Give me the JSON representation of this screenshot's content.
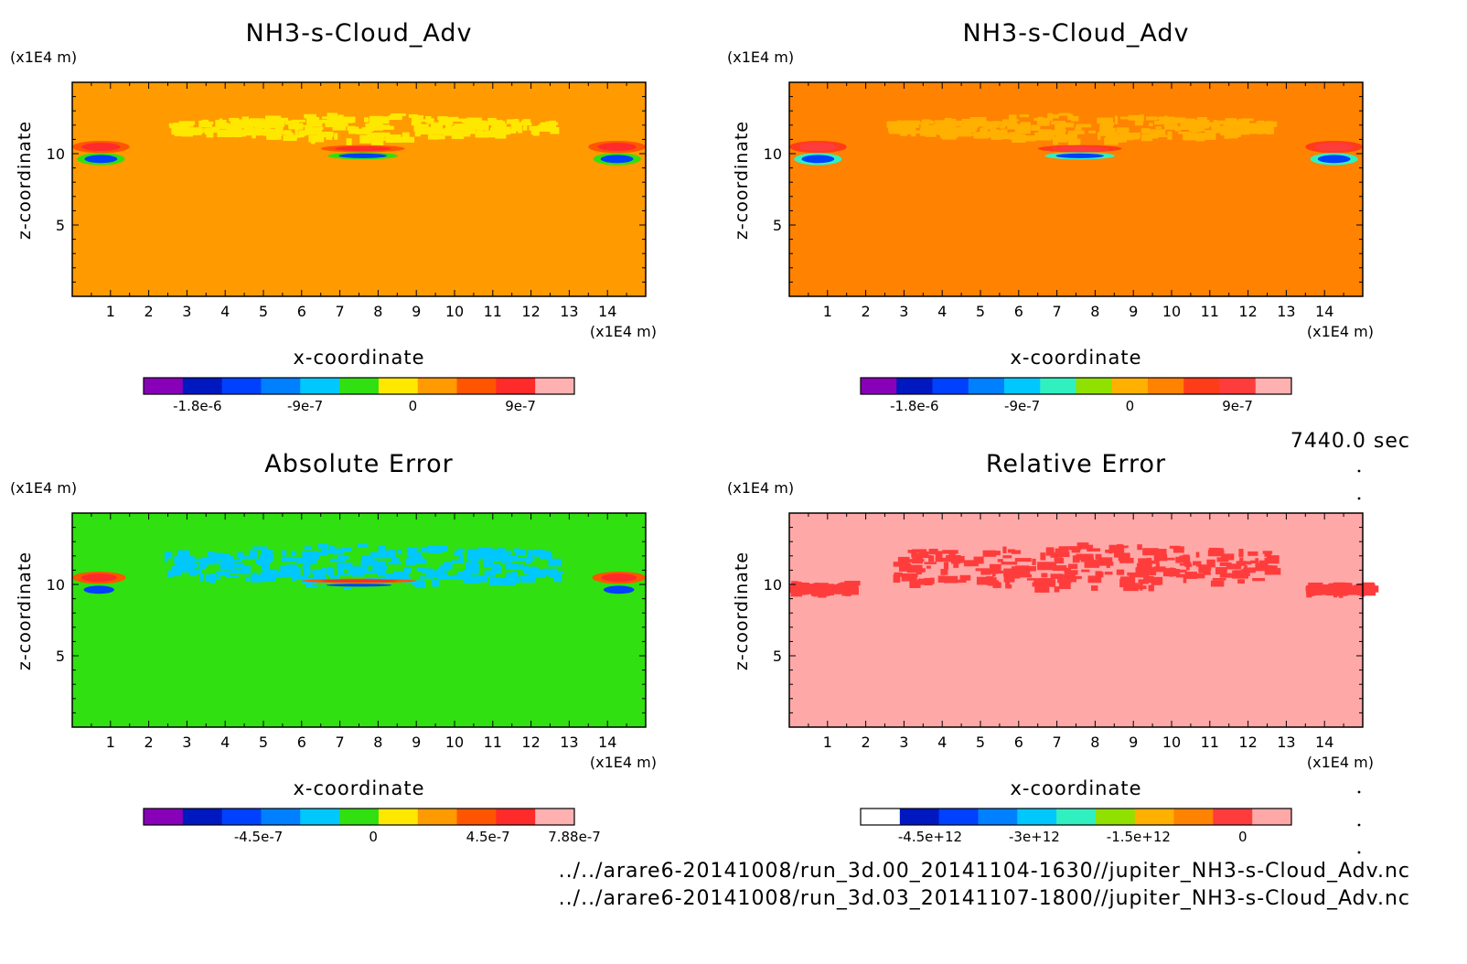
{
  "time_label": "7440.0 sec",
  "file_paths": [
    "../../arare6-20141008/run_3d.00_20141104-1630//jupiter_NH3-s-Cloud_Adv.nc",
    "../../arare6-20141008/run_3d.03_20141107-1800//jupiter_NH3-s-Cloud_Adv.nc"
  ],
  "chart_data": [
    {
      "type": "heatmap",
      "title": "NH3-s-Cloud_Adv",
      "xlabel": "x-coordinate",
      "ylabel": "z-coordinate",
      "x_unit": "(x1E4 m)",
      "y_unit": "(x1E4 m)",
      "xlim": [
        0,
        15
      ],
      "ylim": [
        0,
        15
      ],
      "x_ticks": [
        1,
        2,
        3,
        4,
        5,
        6,
        7,
        8,
        9,
        10,
        11,
        12,
        13,
        14
      ],
      "y_ticks": [
        5,
        10
      ],
      "background_color": "#ff9a00",
      "colorbar": {
        "colors": [
          "#8800b8",
          "#0018c0",
          "#0040ff",
          "#0080ff",
          "#00c8ff",
          "#30e010",
          "#ffe800",
          "#ff9a00",
          "#ff5500",
          "#ff2a2a",
          "#ffb0b0"
        ],
        "tick_labels": [
          "-1.8e-6",
          "-9e-7",
          "0",
          "9e-7"
        ],
        "tick_values": [
          -1.8e-06,
          -9e-07,
          0,
          9e-07
        ],
        "range": [
          -2.25e-06,
          1.35e-06
        ]
      },
      "features": [
        {
          "kind": "cloud-band",
          "color": "#ffe800",
          "x": [
            2.5,
            12.5
          ],
          "z": [
            10.8,
            13.0
          ]
        },
        {
          "kind": "dipole",
          "x": [
            6.5,
            8.7
          ],
          "z": [
            9.6,
            10.6
          ]
        },
        {
          "kind": "dipole",
          "x": [
            0.0,
            1.5
          ],
          "z": [
            9.2,
            10.9
          ]
        },
        {
          "kind": "dipole",
          "x": [
            13.5,
            15.0
          ],
          "z": [
            9.2,
            10.9
          ]
        }
      ]
    },
    {
      "type": "heatmap",
      "title": "NH3-s-Cloud_Adv",
      "xlabel": "x-coordinate",
      "ylabel": "z-coordinate",
      "x_unit": "(x1E4 m)",
      "y_unit": "(x1E4 m)",
      "xlim": [
        0,
        15
      ],
      "ylim": [
        0,
        15
      ],
      "x_ticks": [
        1,
        2,
        3,
        4,
        5,
        6,
        7,
        8,
        9,
        10,
        11,
        12,
        13,
        14
      ],
      "y_ticks": [
        5,
        10
      ],
      "background_color": "#ff8200",
      "colorbar": {
        "colors": [
          "#8800b8",
          "#0018c0",
          "#0040ff",
          "#0080ff",
          "#00c8ff",
          "#30f0c0",
          "#90e000",
          "#ffb000",
          "#ff8200",
          "#ff3c1a",
          "#ff3c3c",
          "#ffb0b0"
        ],
        "tick_labels": [
          "-1.8e-6",
          "-9e-7",
          "0",
          "9e-7"
        ],
        "tick_values": [
          -1.8e-06,
          -9e-07,
          0,
          9e-07
        ],
        "range": [
          -2.25e-06,
          1.35e-06
        ]
      },
      "features": [
        {
          "kind": "cloud-band",
          "color": "#ffb000",
          "x": [
            2.5,
            12.5
          ],
          "z": [
            10.8,
            13.0
          ]
        },
        {
          "kind": "dipole",
          "x": [
            6.5,
            8.7
          ],
          "z": [
            9.6,
            10.6
          ]
        },
        {
          "kind": "dipole",
          "x": [
            0.0,
            1.5
          ],
          "z": [
            9.2,
            10.9
          ]
        },
        {
          "kind": "dipole",
          "x": [
            13.5,
            15.0
          ],
          "z": [
            9.2,
            10.9
          ]
        }
      ]
    },
    {
      "type": "heatmap",
      "title": "Absolute Error",
      "xlabel": "x-coordinate",
      "ylabel": "z-coordinate",
      "x_unit": "(x1E4 m)",
      "y_unit": "(x1E4 m)",
      "xlim": [
        0,
        15
      ],
      "ylim": [
        0,
        15
      ],
      "x_ticks": [
        1,
        2,
        3,
        4,
        5,
        6,
        7,
        8,
        9,
        10,
        11,
        12,
        13,
        14
      ],
      "y_ticks": [
        5,
        10
      ],
      "background_color": "#30e010",
      "colorbar": {
        "colors": [
          "#8800b8",
          "#0018c0",
          "#0040ff",
          "#0080ff",
          "#00c8ff",
          "#30e010",
          "#ffe800",
          "#ff9a00",
          "#ff5500",
          "#ff2a2a",
          "#ffb0b0"
        ],
        "tick_labels": [
          "-4.5e-7",
          "0",
          "4.5e-7",
          "7.88e-7"
        ],
        "tick_values": [
          -4.5e-07,
          0,
          4.5e-07,
          7.88e-07
        ],
        "range": [
          -9e-07,
          7.88e-07
        ]
      },
      "features": [
        {
          "kind": "cloud-band",
          "color": "#00c8ff",
          "x": [
            2.3,
            12.6
          ],
          "z": [
            9.8,
            13.0
          ]
        },
        {
          "kind": "dipole",
          "x": [
            6.0,
            9.0
          ],
          "z": [
            9.8,
            10.4
          ]
        },
        {
          "kind": "dipole",
          "x": [
            0.0,
            1.4
          ],
          "z": [
            9.2,
            10.9
          ]
        },
        {
          "kind": "dipole",
          "x": [
            13.6,
            15.0
          ],
          "z": [
            9.2,
            10.9
          ]
        }
      ]
    },
    {
      "type": "heatmap",
      "title": "Relative Error",
      "xlabel": "x-coordinate",
      "ylabel": "z-coordinate",
      "x_unit": "(x1E4 m)",
      "y_unit": "(x1E4 m)",
      "xlim": [
        0,
        15
      ],
      "ylim": [
        0,
        15
      ],
      "x_ticks": [
        1,
        2,
        3,
        4,
        5,
        6,
        7,
        8,
        9,
        10,
        11,
        12,
        13,
        14
      ],
      "y_ticks": [
        5,
        10
      ],
      "background_color": "#ffa8a8",
      "colorbar": {
        "colors": [
          "#ffffff",
          "#0018c0",
          "#0040ff",
          "#0080ff",
          "#00c8ff",
          "#30f0c0",
          "#90e000",
          "#ffb000",
          "#ff8200",
          "#ff3c3c",
          "#ffa8a8"
        ],
        "tick_labels": [
          "-4.5e+12",
          "-3e+12",
          "-1.5e+12",
          "0"
        ],
        "tick_values": [
          -4500000000000.0,
          -3000000000000.0,
          -1500000000000.0,
          0
        ],
        "range": [
          -5500000000000.0,
          700000000000.0
        ]
      },
      "features": [
        {
          "kind": "cloud-band",
          "color": "#ff3c3c",
          "x": [
            2.6,
            12.6
          ],
          "z": [
            9.5,
            13.0
          ]
        },
        {
          "kind": "cloud-band",
          "color": "#ff3c3c",
          "x": [
            0.0,
            1.5
          ],
          "z": [
            9.4,
            10.2
          ]
        },
        {
          "kind": "cloud-band",
          "color": "#ff3c3c",
          "x": [
            13.5,
            15.0
          ],
          "z": [
            9.3,
            10.2
          ]
        }
      ]
    }
  ]
}
